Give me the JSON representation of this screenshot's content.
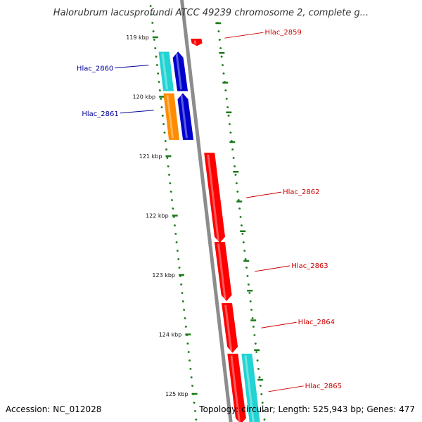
{
  "title": "Halorubrum lacusprofundi ATCC 49239 chromosome 2, complete g...",
  "footer": {
    "accession": "Accession: NC_012028",
    "topology": "Topology: circular; Length: 525,943 bp; Genes: 477"
  },
  "colors": {
    "backbone": "#8c8c8c",
    "tick": "#1a7a1a",
    "forward_gene": "#ff0000",
    "reverse_gene": "#0000cc",
    "cyan_gene": "#22d3d3",
    "orange_gene": "#ff8c00",
    "forward_label": "#cc0000",
    "reverse_label": "#000099"
  },
  "axis": {
    "ticks": [
      {
        "label": "119 kbp",
        "pos": 119
      },
      {
        "label": "120 kbp",
        "pos": 120
      },
      {
        "label": "121 kbp",
        "pos": 121
      },
      {
        "label": "122 kbp",
        "pos": 122
      },
      {
        "label": "123 kbp",
        "pos": 123
      },
      {
        "label": "124 kbp",
        "pos": 124
      },
      {
        "label": "125 kbp",
        "pos": 125
      }
    ]
  },
  "genes": [
    {
      "label": "Hlac_2859",
      "strand": "forward",
      "start": 119.03,
      "end": 119.14,
      "color": "#ff0000",
      "track": 0
    },
    {
      "label": "Hlac_2860",
      "strand": "reverse",
      "start": 119.25,
      "end": 119.9,
      "color": "#0000cc",
      "track": 0
    },
    {
      "label": "",
      "strand": "reverse",
      "start": 119.25,
      "end": 119.9,
      "color": "#22d3d3",
      "track": 1
    },
    {
      "label": "Hlac_2861",
      "strand": "reverse",
      "start": 119.95,
      "end": 120.72,
      "color": "#0000cc",
      "track": 0
    },
    {
      "label": "",
      "strand": "reverse",
      "start": 119.95,
      "end": 120.72,
      "color": "#ff8c00",
      "track": 1
    },
    {
      "label": "Hlac_2862",
      "strand": "forward",
      "start": 120.95,
      "end": 122.45,
      "color": "#ff0000",
      "track": 0
    },
    {
      "label": "Hlac_2863",
      "strand": "forward",
      "start": 122.45,
      "end": 123.43,
      "color": "#ff0000",
      "track": 0
    },
    {
      "label": "Hlac_2864",
      "strand": "forward",
      "start": 123.48,
      "end": 124.3,
      "color": "#ff0000",
      "track": 0
    },
    {
      "label": "Hlac_2865",
      "strand": "forward",
      "start": 124.33,
      "end": 125.5,
      "color": "#ff0000",
      "track": 0
    },
    {
      "label": "",
      "strand": "forward",
      "start": 124.33,
      "end": 125.5,
      "color": "#22d3d3",
      "track": 1
    }
  ]
}
